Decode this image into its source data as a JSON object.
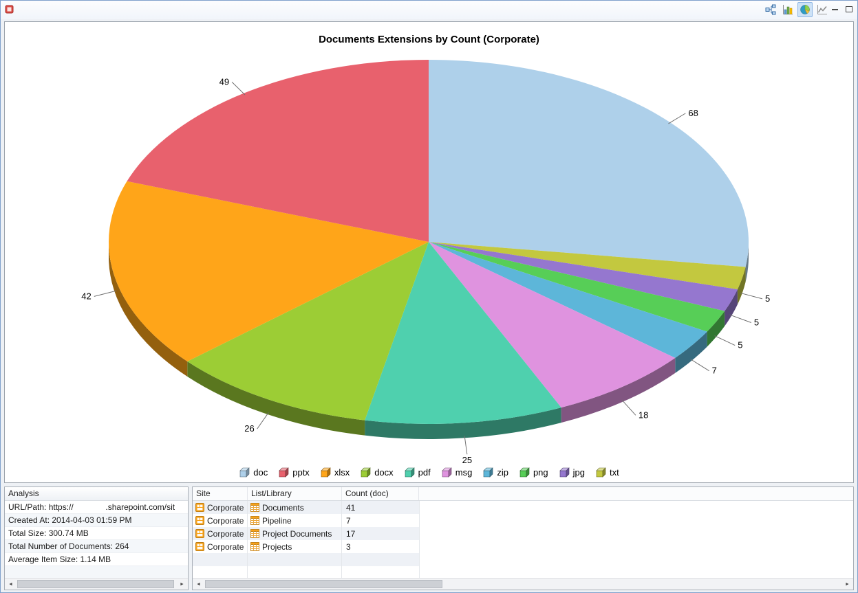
{
  "window": {
    "toolbar": {
      "buttons": [
        {
          "name": "org-chart",
          "selected": false
        },
        {
          "name": "bar-chart",
          "selected": false
        },
        {
          "name": "pie-chart",
          "selected": true
        },
        {
          "name": "line-chart",
          "selected": false
        }
      ],
      "window_controls": [
        "minimize",
        "maximize"
      ]
    }
  },
  "chart_data": {
    "type": "pie",
    "style": "3d",
    "title": "Documents Extensions by Count (Corporate)",
    "categories": [
      "doc",
      "pptx",
      "xlsx",
      "docx",
      "pdf",
      "msg",
      "zip",
      "png",
      "jpg",
      "txt"
    ],
    "values": [
      68,
      49,
      42,
      26,
      25,
      18,
      7,
      5,
      5,
      5
    ],
    "colors": [
      "#aed0ea",
      "#e8616d",
      "#ffa519",
      "#9ccd35",
      "#4fd0ae",
      "#df93df",
      "#5db6d9",
      "#57ce57",
      "#9577cf",
      "#c3c83f"
    ],
    "legend_position": "bottom",
    "label_style": "value-outside-leader-line"
  },
  "analysis_panel": {
    "title": "Analysis",
    "rows": [
      "URL/Path: https://              .sharepoint.com/sit",
      "Created At: 2014-04-03 01:59 PM",
      "Total Size: 300.74 MB",
      "Total Number of Documents: 264",
      "Average Item Size: 1.14 MB"
    ]
  },
  "table_panel": {
    "columns": [
      "Site",
      "List/Library",
      "Count (doc)"
    ],
    "sorted_column": "Count (doc)",
    "rows": [
      {
        "site": "Corporate",
        "library": "Documents",
        "count": "41"
      },
      {
        "site": "Corporate",
        "library": "Pipeline",
        "count": "7"
      },
      {
        "site": "Corporate",
        "library": "Project Documents",
        "count": "17"
      },
      {
        "site": "Corporate",
        "library": "Projects",
        "count": "3"
      }
    ]
  }
}
